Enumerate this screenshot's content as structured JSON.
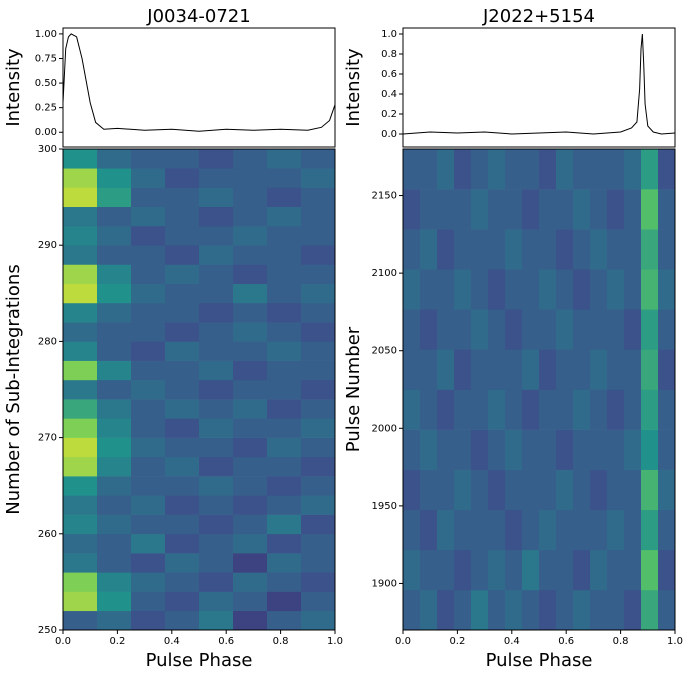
{
  "chart_data": [
    {
      "type": "line",
      "title": "J0034-0721",
      "ylabel": "Intensity",
      "color": "#000000",
      "x": [
        0,
        0.01,
        0.02,
        0.03,
        0.05,
        0.07,
        0.09,
        0.1,
        0.12,
        0.15,
        0.2,
        0.3,
        0.4,
        0.5,
        0.6,
        0.7,
        0.8,
        0.9,
        0.95,
        0.98,
        1.0
      ],
      "values": [
        0.3,
        0.85,
        0.97,
        1.0,
        0.97,
        0.75,
        0.45,
        0.3,
        0.1,
        0.03,
        0.04,
        0.02,
        0.03,
        0.01,
        0.03,
        0.02,
        0.03,
        0.02,
        0.05,
        0.12,
        0.28
      ],
      "xlim": [
        0,
        1
      ],
      "ylim": [
        -0.15,
        1.06
      ],
      "yticks": [
        {
          "value": 0,
          "label": "0.00"
        },
        {
          "value": 0.25,
          "label": "0.25"
        },
        {
          "value": 0.5,
          "label": "0.50"
        },
        {
          "value": 0.75,
          "label": "0.75"
        },
        {
          "value": 1,
          "label": "1.00"
        }
      ]
    },
    {
      "type": "heatmap",
      "xlabel": "Pulse Phase",
      "ylabel": "Number of Sub-Integrations",
      "xlim": [
        0,
        1
      ],
      "ylim": [
        250,
        300
      ],
      "xticks": [
        {
          "value": 0,
          "label": "0.0"
        },
        {
          "value": 0.2,
          "label": "0.2"
        },
        {
          "value": 0.4,
          "label": "0.4"
        },
        {
          "value": 0.6,
          "label": "0.6"
        },
        {
          "value": 0.8,
          "label": "0.8"
        },
        {
          "value": 1,
          "label": "1.0"
        }
      ],
      "yticks": [
        250,
        260,
        270,
        280,
        290,
        300
      ],
      "values": [
        [
          0.3,
          0.35,
          0.25,
          0.3,
          0.4,
          0.2,
          0.3,
          0.35
        ],
        [
          0.85,
          0.5,
          0.3,
          0.25,
          0.35,
          0.3,
          0.2,
          0.3
        ],
        [
          0.8,
          0.45,
          0.35,
          0.3,
          0.25,
          0.35,
          0.3,
          0.25
        ],
        [
          0.4,
          0.3,
          0.25,
          0.35,
          0.3,
          0.2,
          0.35,
          0.3
        ],
        [
          0.35,
          0.3,
          0.4,
          0.25,
          0.3,
          0.35,
          0.25,
          0.3
        ],
        [
          0.45,
          0.35,
          0.3,
          0.3,
          0.25,
          0.3,
          0.4,
          0.25
        ],
        [
          0.4,
          0.3,
          0.35,
          0.25,
          0.3,
          0.25,
          0.3,
          0.35
        ],
        [
          0.5,
          0.35,
          0.3,
          0.3,
          0.35,
          0.3,
          0.25,
          0.3
        ],
        [
          0.85,
          0.45,
          0.3,
          0.35,
          0.25,
          0.3,
          0.3,
          0.25
        ],
        [
          0.9,
          0.5,
          0.35,
          0.3,
          0.3,
          0.25,
          0.35,
          0.3
        ],
        [
          0.8,
          0.45,
          0.3,
          0.25,
          0.35,
          0.3,
          0.3,
          0.35
        ],
        [
          0.6,
          0.4,
          0.3,
          0.35,
          0.3,
          0.35,
          0.25,
          0.3
        ],
        [
          0.4,
          0.3,
          0.35,
          0.3,
          0.25,
          0.3,
          0.3,
          0.25
        ],
        [
          0.8,
          0.45,
          0.3,
          0.3,
          0.35,
          0.25,
          0.3,
          0.3
        ],
        [
          0.45,
          0.3,
          0.25,
          0.35,
          0.3,
          0.3,
          0.35,
          0.3
        ],
        [
          0.35,
          0.3,
          0.3,
          0.25,
          0.3,
          0.35,
          0.3,
          0.25
        ],
        [
          0.45,
          0.35,
          0.3,
          0.3,
          0.25,
          0.3,
          0.25,
          0.3
        ],
        [
          0.9,
          0.5,
          0.35,
          0.3,
          0.3,
          0.4,
          0.3,
          0.35
        ],
        [
          0.85,
          0.45,
          0.3,
          0.35,
          0.3,
          0.25,
          0.3,
          0.3
        ],
        [
          0.4,
          0.3,
          0.3,
          0.25,
          0.35,
          0.3,
          0.3,
          0.25
        ],
        [
          0.45,
          0.35,
          0.25,
          0.3,
          0.3,
          0.35,
          0.3,
          0.3
        ],
        [
          0.4,
          0.3,
          0.35,
          0.3,
          0.25,
          0.3,
          0.35,
          0.3
        ],
        [
          0.9,
          0.55,
          0.3,
          0.3,
          0.35,
          0.3,
          0.25,
          0.3
        ],
        [
          0.85,
          0.5,
          0.35,
          0.25,
          0.3,
          0.3,
          0.3,
          0.35
        ],
        [
          0.5,
          0.35,
          0.3,
          0.3,
          0.25,
          0.3,
          0.35,
          0.3
        ]
      ]
    },
    {
      "type": "line",
      "title": "J2022+5154",
      "ylabel": "Intensity",
      "color": "#000000",
      "x": [
        0,
        0.1,
        0.2,
        0.3,
        0.4,
        0.5,
        0.6,
        0.7,
        0.8,
        0.84,
        0.86,
        0.87,
        0.875,
        0.88,
        0.885,
        0.89,
        0.9,
        0.92,
        0.95,
        1.0
      ],
      "values": [
        0.0,
        0.02,
        0.01,
        0.02,
        0.0,
        0.01,
        0.02,
        0.0,
        0.02,
        0.06,
        0.12,
        0.45,
        0.85,
        1.0,
        0.7,
        0.3,
        0.08,
        0.02,
        0.0,
        0.01
      ],
      "xlim": [
        0,
        1
      ],
      "ylim": [
        -0.13,
        1.06
      ],
      "yticks": [
        {
          "value": 0,
          "label": "0.0"
        },
        {
          "value": 0.2,
          "label": "0.2"
        },
        {
          "value": 0.4,
          "label": "0.4"
        },
        {
          "value": 0.6,
          "label": "0.6"
        },
        {
          "value": 0.8,
          "label": "0.8"
        },
        {
          "value": 1,
          "label": "1.0"
        }
      ]
    },
    {
      "type": "heatmap",
      "xlabel": "Pulse Phase",
      "ylabel": "Pulse Number",
      "xlim": [
        0,
        1
      ],
      "ylim": [
        1870,
        2180
      ],
      "xticks": [
        {
          "value": 0,
          "label": "0.0"
        },
        {
          "value": 0.2,
          "label": "0.2"
        },
        {
          "value": 0.4,
          "label": "0.4"
        },
        {
          "value": 0.6,
          "label": "0.6"
        },
        {
          "value": 0.8,
          "label": "0.8"
        },
        {
          "value": 1,
          "label": "1.0"
        }
      ],
      "yticks": [
        1900,
        1950,
        2000,
        2050,
        2100,
        2150
      ],
      "values": [
        [
          0.3,
          0.35,
          0.25,
          0.3,
          0.4,
          0.3,
          0.35,
          0.3,
          0.25,
          0.3,
          0.35,
          0.3,
          0.3,
          0.25,
          0.6,
          0.3
        ],
        [
          0.35,
          0.3,
          0.3,
          0.25,
          0.3,
          0.35,
          0.3,
          0.4,
          0.3,
          0.3,
          0.25,
          0.35,
          0.3,
          0.3,
          0.7,
          0.25
        ],
        [
          0.3,
          0.25,
          0.35,
          0.3,
          0.3,
          0.3,
          0.25,
          0.3,
          0.35,
          0.3,
          0.3,
          0.3,
          0.35,
          0.3,
          0.55,
          0.3
        ],
        [
          0.25,
          0.3,
          0.3,
          0.35,
          0.3,
          0.25,
          0.3,
          0.3,
          0.3,
          0.35,
          0.3,
          0.25,
          0.3,
          0.3,
          0.65,
          0.35
        ],
        [
          0.3,
          0.35,
          0.3,
          0.3,
          0.25,
          0.3,
          0.35,
          0.3,
          0.3,
          0.25,
          0.3,
          0.3,
          0.3,
          0.35,
          0.5,
          0.3
        ],
        [
          0.35,
          0.3,
          0.25,
          0.3,
          0.3,
          0.35,
          0.3,
          0.25,
          0.3,
          0.3,
          0.35,
          0.3,
          0.25,
          0.3,
          0.55,
          0.3
        ],
        [
          0.3,
          0.3,
          0.35,
          0.25,
          0.3,
          0.3,
          0.3,
          0.35,
          0.25,
          0.3,
          0.3,
          0.35,
          0.3,
          0.3,
          0.6,
          0.25
        ],
        [
          0.3,
          0.25,
          0.3,
          0.3,
          0.35,
          0.3,
          0.25,
          0.3,
          0.3,
          0.35,
          0.3,
          0.3,
          0.3,
          0.25,
          0.55,
          0.3
        ],
        [
          0.35,
          0.3,
          0.3,
          0.35,
          0.3,
          0.25,
          0.3,
          0.3,
          0.35,
          0.3,
          0.25,
          0.3,
          0.35,
          0.3,
          0.65,
          0.35
        ],
        [
          0.3,
          0.35,
          0.25,
          0.3,
          0.3,
          0.3,
          0.35,
          0.3,
          0.3,
          0.25,
          0.3,
          0.35,
          0.3,
          0.3,
          0.6,
          0.3
        ],
        [
          0.25,
          0.3,
          0.3,
          0.3,
          0.35,
          0.3,
          0.3,
          0.25,
          0.3,
          0.3,
          0.35,
          0.3,
          0.25,
          0.3,
          0.7,
          0.3
        ],
        [
          0.3,
          0.3,
          0.35,
          0.25,
          0.3,
          0.35,
          0.3,
          0.3,
          0.25,
          0.35,
          0.3,
          0.3,
          0.3,
          0.35,
          0.55,
          0.25
        ]
      ]
    }
  ]
}
